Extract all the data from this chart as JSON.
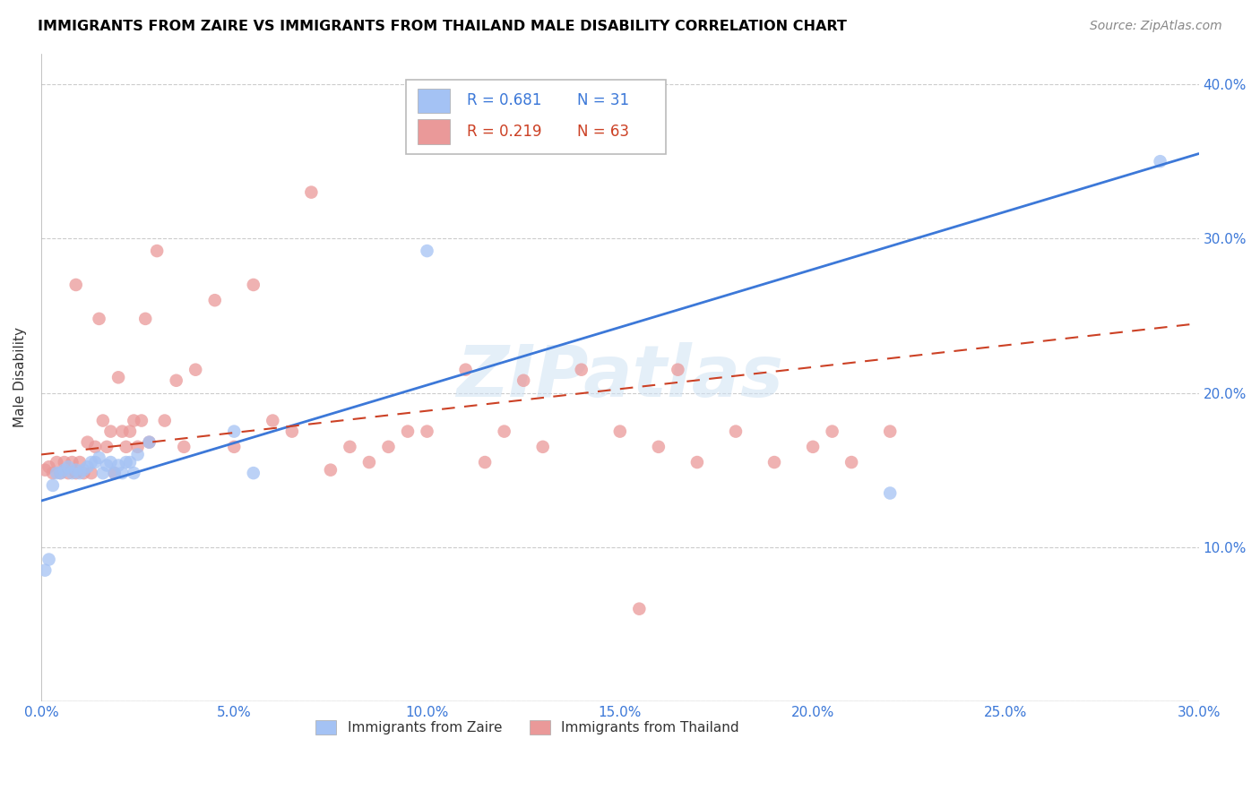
{
  "title": "IMMIGRANTS FROM ZAIRE VS IMMIGRANTS FROM THAILAND MALE DISABILITY CORRELATION CHART",
  "source": "Source: ZipAtlas.com",
  "ylabel": "Male Disability",
  "xlim": [
    0.0,
    0.3
  ],
  "ylim": [
    0.0,
    0.42
  ],
  "zaire_R": 0.681,
  "zaire_N": 31,
  "thailand_R": 0.219,
  "thailand_N": 63,
  "zaire_color": "#a4c2f4",
  "thailand_color": "#ea9999",
  "zaire_line_color": "#3c78d8",
  "thailand_line_color": "#cc4125",
  "watermark": "ZIPatlas",
  "zaire_x": [
    0.001,
    0.002,
    0.003,
    0.004,
    0.005,
    0.006,
    0.007,
    0.008,
    0.009,
    0.01,
    0.011,
    0.012,
    0.013,
    0.014,
    0.015,
    0.016,
    0.017,
    0.018,
    0.019,
    0.02,
    0.021,
    0.022,
    0.023,
    0.024,
    0.025,
    0.028,
    0.05,
    0.055,
    0.1,
    0.22,
    0.29
  ],
  "zaire_y": [
    0.085,
    0.092,
    0.14,
    0.148,
    0.148,
    0.15,
    0.152,
    0.148,
    0.15,
    0.148,
    0.15,
    0.152,
    0.155,
    0.155,
    0.158,
    0.148,
    0.153,
    0.155,
    0.148,
    0.153,
    0.148,
    0.155,
    0.155,
    0.148,
    0.16,
    0.168,
    0.175,
    0.148,
    0.292,
    0.135,
    0.35
  ],
  "thailand_x": [
    0.001,
    0.002,
    0.003,
    0.004,
    0.005,
    0.006,
    0.007,
    0.008,
    0.009,
    0.009,
    0.01,
    0.011,
    0.012,
    0.013,
    0.014,
    0.015,
    0.016,
    0.017,
    0.018,
    0.019,
    0.02,
    0.021,
    0.022,
    0.023,
    0.024,
    0.025,
    0.026,
    0.027,
    0.028,
    0.03,
    0.032,
    0.035,
    0.037,
    0.04,
    0.045,
    0.05,
    0.055,
    0.06,
    0.065,
    0.07,
    0.075,
    0.08,
    0.085,
    0.09,
    0.095,
    0.1,
    0.11,
    0.115,
    0.12,
    0.125,
    0.13,
    0.14,
    0.15,
    0.155,
    0.16,
    0.165,
    0.17,
    0.18,
    0.19,
    0.2,
    0.205,
    0.21,
    0.22
  ],
  "thailand_y": [
    0.15,
    0.152,
    0.148,
    0.155,
    0.148,
    0.155,
    0.148,
    0.155,
    0.27,
    0.148,
    0.155,
    0.148,
    0.168,
    0.148,
    0.165,
    0.248,
    0.182,
    0.165,
    0.175,
    0.148,
    0.21,
    0.175,
    0.165,
    0.175,
    0.182,
    0.165,
    0.182,
    0.248,
    0.168,
    0.292,
    0.182,
    0.208,
    0.165,
    0.215,
    0.26,
    0.165,
    0.27,
    0.182,
    0.175,
    0.33,
    0.15,
    0.165,
    0.155,
    0.165,
    0.175,
    0.175,
    0.215,
    0.155,
    0.175,
    0.208,
    0.165,
    0.215,
    0.175,
    0.06,
    0.165,
    0.215,
    0.155,
    0.175,
    0.155,
    0.165,
    0.175,
    0.155,
    0.175
  ],
  "zaire_line_x0": 0.0,
  "zaire_line_y0": 0.13,
  "zaire_line_x1": 0.3,
  "zaire_line_y1": 0.355,
  "thailand_line_x0": 0.0,
  "thailand_line_y0": 0.16,
  "thailand_line_x1": 0.3,
  "thailand_line_y1": 0.245
}
